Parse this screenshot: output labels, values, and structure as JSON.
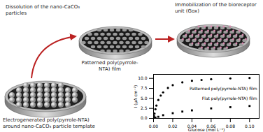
{
  "labels": {
    "dissolution": "Dissolution of the nano-CaCO₃ particles",
    "patterned": "Patterned poly(pyrrole-NTA) film",
    "immobilization": "Immobilization of the bioreceptor unit (Gox)",
    "template": "Electrogenerated poly(pyrrole-NTA) around nano-CaCO₃ particle template"
  },
  "chart_data": {
    "type": "scatter",
    "x_label": "Glucose (mol L⁻¹)",
    "y_label": "I (µA cm⁻²)",
    "xlim": [
      0,
      0.11
    ],
    "ylim": [
      0,
      11
    ],
    "xticks": [
      {
        "value": 0,
        "label": "0.00"
      },
      0.02,
      0.04,
      0.06,
      0.08,
      {
        "value": 0.1,
        "label": "0.10"
      }
    ],
    "yticks": [
      {
        "value": 0,
        "label": "0.0"
      },
      2.5,
      {
        "value": 5,
        "label": "5.0"
      },
      7.5,
      {
        "value": 10,
        "label": "10.0"
      }
    ],
    "series": [
      {
        "name": "Patterned poly(pyrrole-NTA) film",
        "color": "#000000",
        "marker": "circle",
        "x": [
          0.0005,
          0.001,
          0.002,
          0.003,
          0.005,
          0.0075,
          0.01,
          0.015,
          0.02,
          0.03,
          0.04,
          0.05,
          0.06,
          0.08,
          0.1
        ],
        "values": [
          0.6,
          1.2,
          2.3,
          3.2,
          4.6,
          5.7,
          6.5,
          7.6,
          8.3,
          9.0,
          9.4,
          9.6,
          9.8,
          10.0,
          10.1
        ]
      },
      {
        "name": "Flat poly(pyrrole-NTA) film",
        "color": "#000000",
        "marker": "square",
        "x": [
          0.001,
          0.002,
          0.005,
          0.01,
          0.02,
          0.03,
          0.04,
          0.06,
          0.08,
          0.1
        ],
        "values": [
          0.1,
          0.2,
          0.4,
          0.8,
          1.3,
          1.7,
          2.0,
          2.5,
          2.8,
          3.1
        ]
      }
    ]
  }
}
